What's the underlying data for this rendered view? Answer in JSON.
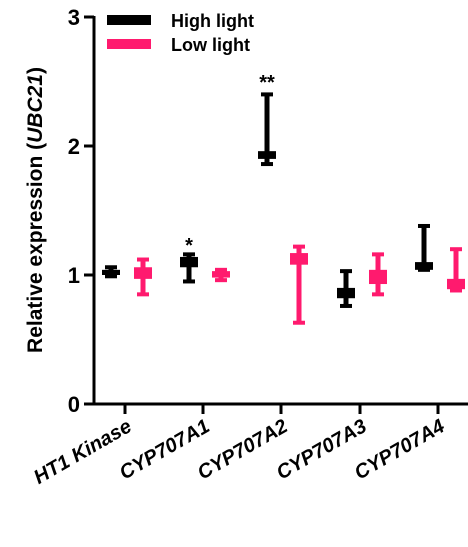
{
  "chart_data": {
    "type": "box",
    "ylabel_prefix": "Relative expression (",
    "ylabel_italic": "UBC21",
    "ylabel_suffix": ")",
    "ylim": [
      0,
      3
    ],
    "yticks": [
      0,
      1,
      2,
      3
    ],
    "grid": false,
    "legend_position": "top-left",
    "categories": [
      "HT1 Kinase",
      "CYP707A1",
      "CYP707A2",
      "CYP707A3",
      "CYP707A4"
    ],
    "series": [
      {
        "name": "High light",
        "color": "#000000",
        "values": [
          {
            "min": 0.99,
            "q1": 1.0,
            "median": 1.02,
            "q3": 1.04,
            "max": 1.06
          },
          {
            "min": 0.95,
            "q1": 1.06,
            "median": 1.1,
            "q3": 1.14,
            "max": 1.16
          },
          {
            "min": 1.86,
            "q1": 1.9,
            "median": 1.93,
            "q3": 1.96,
            "max": 2.4
          },
          {
            "min": 0.76,
            "q1": 0.82,
            "median": 0.86,
            "q3": 0.9,
            "max": 1.03
          },
          {
            "min": 1.04,
            "q1": 1.04,
            "median": 1.07,
            "q3": 1.1,
            "max": 1.38
          }
        ]
      },
      {
        "name": "Low light",
        "color": "#ff1a6e",
        "values": [
          {
            "min": 0.85,
            "q1": 0.97,
            "median": 1.02,
            "q3": 1.06,
            "max": 1.12
          },
          {
            "min": 0.96,
            "q1": 0.98,
            "median": 1.0,
            "q3": 1.03,
            "max": 1.04
          },
          {
            "min": 0.63,
            "q1": 1.08,
            "median": 1.12,
            "q3": 1.17,
            "max": 1.22
          },
          {
            "min": 0.85,
            "q1": 0.93,
            "median": 0.98,
            "q3": 1.04,
            "max": 1.16
          },
          {
            "min": 0.88,
            "q1": 0.89,
            "median": 0.93,
            "q3": 0.97,
            "max": 1.2
          }
        ]
      }
    ],
    "annotations": [
      {
        "text": "*",
        "category": "CYP707A1",
        "series": 0,
        "y": 1.18
      },
      {
        "text": "**",
        "category": "CYP707A2",
        "series": 0,
        "y": 2.44
      }
    ]
  }
}
